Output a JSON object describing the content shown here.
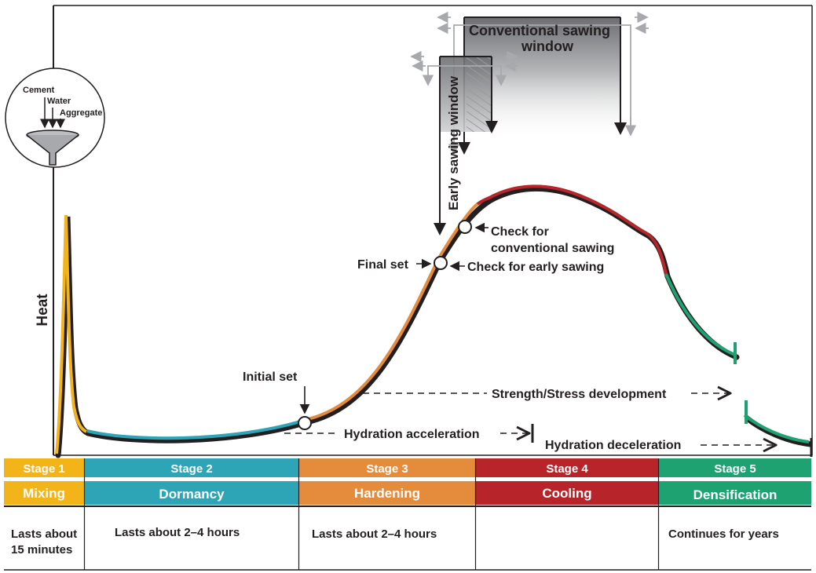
{
  "axis": {
    "ylabel": "Heat"
  },
  "inset": {
    "labels": [
      "Cement",
      "Water",
      "Aggregate"
    ],
    "icon": "funnel-icon"
  },
  "windows": {
    "conventional": [
      "Conventional sawing",
      "window"
    ],
    "early": "Early sawing window"
  },
  "annotations": {
    "initial_set": "Initial set",
    "final_set": "Final set",
    "check_early": "Check for early sawing",
    "check_conventional": [
      "Check for",
      "conventional sawing"
    ],
    "strength": "Strength/Stress development",
    "hydration_acc": "Hydration acceleration",
    "hydration_dec": "Hydration deceleration"
  },
  "stages": [
    {
      "label": "Stage 1",
      "phase": "Mixing",
      "duration": [
        "Lasts about",
        "15 minutes"
      ],
      "color": "#f3b41a"
    },
    {
      "label": "Stage 2",
      "phase": "Dormancy",
      "duration": [
        "Lasts about 2–4 hours"
      ],
      "color": "#2ea5b7"
    },
    {
      "label": "Stage 3",
      "phase": "Hardening",
      "duration": [
        "Lasts about 2–4 hours"
      ],
      "color": "#e58b3c"
    },
    {
      "label": "Stage 4",
      "phase": "Cooling",
      "duration": [],
      "color": "#b72429"
    },
    {
      "label": "Stage 5",
      "phase": "Densification",
      "duration": [
        "Continues for years"
      ],
      "color": "#1fa272"
    }
  ]
}
